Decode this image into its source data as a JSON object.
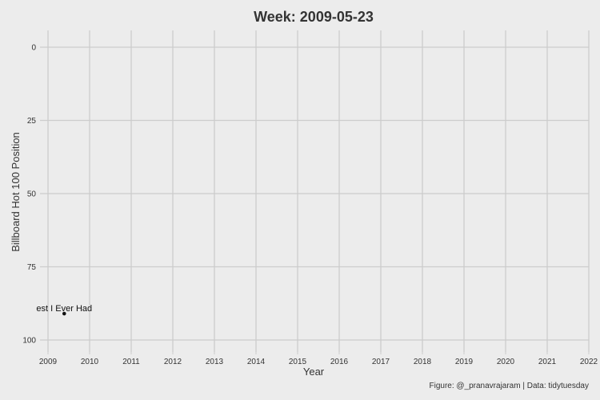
{
  "chart_data": {
    "type": "scatter",
    "title": "Week: 2009-05-23",
    "xlabel": "Year",
    "ylabel": "Billboard Hot 100 Position",
    "caption": "Figure: @_pranavrajaram | Data: tidytuesday",
    "xlim": [
      2009,
      2022
    ],
    "ylim": [
      100,
      0
    ],
    "y_reversed": true,
    "x_ticks": [
      2009,
      2010,
      2011,
      2012,
      2013,
      2014,
      2015,
      2016,
      2017,
      2018,
      2019,
      2020,
      2021,
      2022
    ],
    "y_ticks": [
      0,
      25,
      50,
      75,
      100
    ],
    "grid": true,
    "legend": "none",
    "points": [
      {
        "x": 2009.39,
        "y": 91,
        "label": "est I Ever Had"
      }
    ],
    "colors": {
      "background": "#ececec",
      "grid": "#cccccc",
      "point": "#111111",
      "text": "#333333"
    }
  }
}
